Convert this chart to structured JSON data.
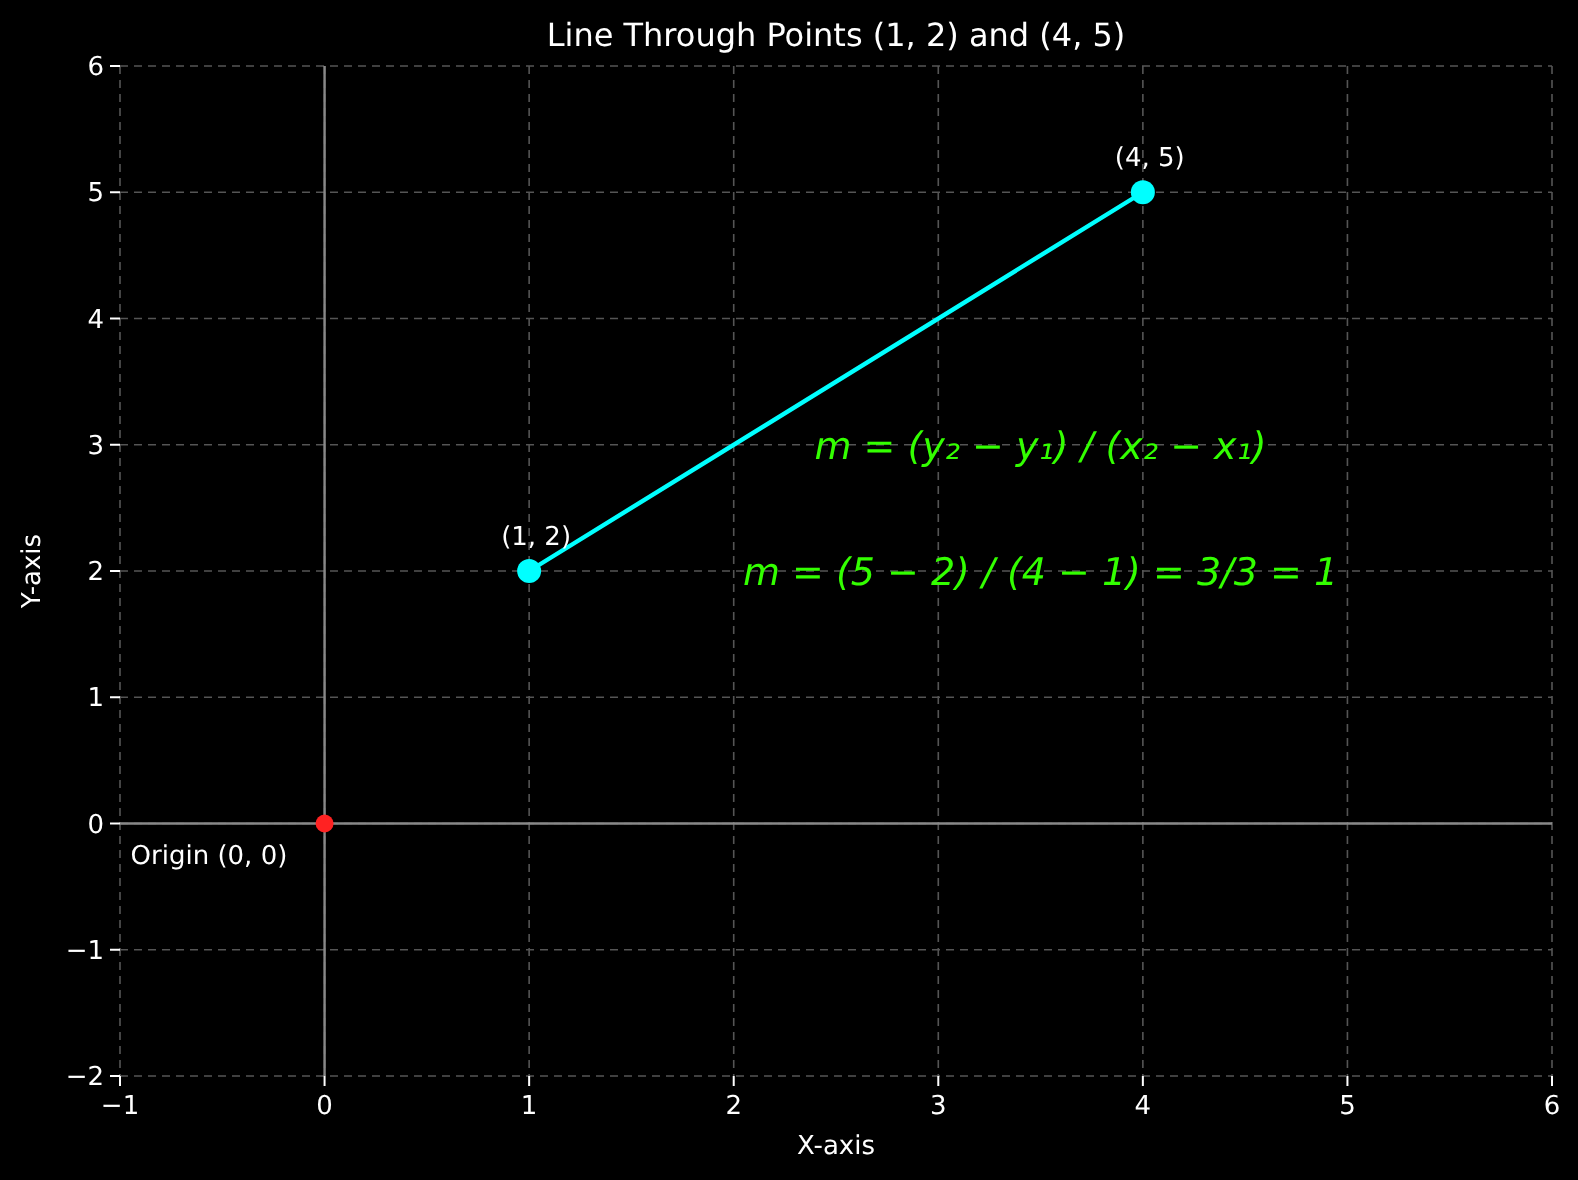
{
  "chart_data": {
    "type": "line",
    "title": "Line Through Points (1, 2) and (4, 5)",
    "xlabel": "X-axis",
    "ylabel": "Y-axis",
    "series": [
      {
        "type": "line",
        "color": "#00ffff",
        "x": [
          1,
          4
        ],
        "values": [
          2,
          5
        ]
      },
      {
        "type": "scatter",
        "color": "#ff2222",
        "x": [
          0
        ],
        "values": [
          0
        ]
      }
    ],
    "xlim": [
      -1,
      6
    ],
    "xticks": [
      -1,
      0,
      1,
      2,
      3,
      4,
      5,
      6
    ],
    "ylim": [
      -2,
      6
    ],
    "yticks": [
      -2,
      -1,
      0,
      1,
      2,
      3,
      4,
      5,
      6
    ],
    "grid": true,
    "marker": "circle",
    "annotations": [
      {
        "text": "(1, 2)",
        "x": 1,
        "y": 2
      },
      {
        "text": "(4, 5)",
        "x": 4,
        "y": 5
      },
      {
        "text": "Origin (0, 0)",
        "x": 0,
        "y": 0
      },
      "m = (y₂ − y₁) / (x₂ − x₁)",
      "m = (5 − 2) / (4 − 1) = 3/3 = 1"
    ]
  }
}
